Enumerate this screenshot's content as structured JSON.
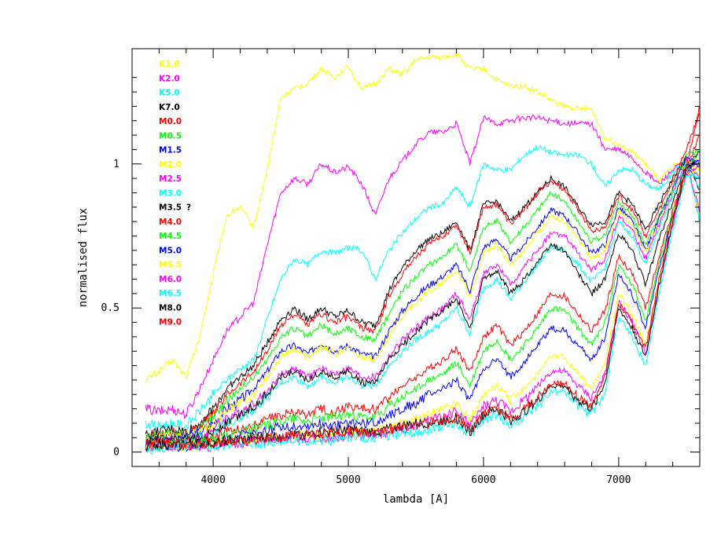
{
  "chart_data": {
    "type": "line",
    "title": "",
    "xlabel": "lambda [A]",
    "ylabel": "normalised flux",
    "xlim": [
      3400,
      7600
    ],
    "ylim": [
      -0.05,
      1.4
    ],
    "x_major_ticks": [
      4000,
      5000,
      6000,
      7000
    ],
    "x_tick_labels": [
      "4000",
      "5000",
      "6000",
      "7000"
    ],
    "y_major_ticks": [
      0,
      0.5,
      1
    ],
    "y_tick_labels": [
      "0",
      "0.5",
      "1"
    ],
    "grid": false,
    "legend_placement": "top-left",
    "annotation": "?",
    "x": [
      3500,
      3600,
      3700,
      3800,
      3900,
      4000,
      4100,
      4200,
      4300,
      4400,
      4500,
      4600,
      4700,
      4800,
      4900,
      5000,
      5100,
      5200,
      5300,
      5400,
      5500,
      5600,
      5700,
      5800,
      5900,
      6000,
      6100,
      6200,
      6300,
      6400,
      6500,
      6600,
      6700,
      6800,
      6900,
      7000,
      7100,
      7200,
      7300,
      7400,
      7500,
      7600
    ],
    "series": [
      {
        "name": "K1.0",
        "color": "#ffff00",
        "values": [
          0.25,
          0.28,
          0.32,
          0.26,
          0.4,
          0.62,
          0.82,
          0.85,
          0.78,
          0.98,
          1.23,
          1.26,
          1.28,
          1.33,
          1.3,
          1.34,
          1.26,
          1.28,
          1.33,
          1.31,
          1.36,
          1.37,
          1.37,
          1.38,
          1.33,
          1.33,
          1.29,
          1.27,
          1.27,
          1.25,
          1.22,
          1.2,
          1.19,
          1.19,
          1.09,
          1.07,
          1.04,
          1.0,
          0.94,
          0.99,
          1.01,
          0.82
        ]
      },
      {
        "name": "K2.0",
        "color": "#ff00ff",
        "values": [
          0.15,
          0.14,
          0.15,
          0.13,
          0.22,
          0.32,
          0.42,
          0.47,
          0.52,
          0.72,
          0.9,
          0.95,
          0.93,
          1.0,
          0.97,
          0.99,
          0.93,
          0.82,
          0.95,
          1.01,
          1.07,
          1.11,
          1.11,
          1.14,
          1.0,
          1.16,
          1.14,
          1.15,
          1.16,
          1.16,
          1.15,
          1.14,
          1.14,
          1.14,
          1.05,
          1.05,
          1.02,
          0.97,
          0.93,
          0.98,
          1.01,
          0.83
        ]
      },
      {
        "name": "K5.0",
        "color": "#00ffff",
        "values": [
          0.1,
          0.09,
          0.1,
          0.09,
          0.14,
          0.2,
          0.25,
          0.29,
          0.32,
          0.46,
          0.6,
          0.67,
          0.65,
          0.7,
          0.69,
          0.71,
          0.7,
          0.6,
          0.7,
          0.76,
          0.81,
          0.85,
          0.86,
          0.92,
          0.85,
          1.0,
          0.98,
          0.98,
          1.03,
          1.06,
          1.04,
          1.03,
          1.03,
          1.0,
          0.92,
          0.98,
          0.98,
          0.93,
          0.91,
          0.97,
          1.01,
          0.8
        ]
      },
      {
        "name": "K7.0",
        "color": "#000000",
        "values": [
          0.06,
          0.07,
          0.08,
          0.07,
          0.1,
          0.15,
          0.22,
          0.26,
          0.3,
          0.38,
          0.46,
          0.5,
          0.46,
          0.5,
          0.47,
          0.49,
          0.45,
          0.44,
          0.56,
          0.64,
          0.7,
          0.74,
          0.76,
          0.8,
          0.7,
          0.86,
          0.87,
          0.8,
          0.85,
          0.9,
          0.95,
          0.92,
          0.85,
          0.79,
          0.8,
          0.9,
          0.86,
          0.77,
          0.86,
          0.95,
          1.02,
          0.9
        ]
      },
      {
        "name": "M0.0",
        "color": "#ff0000",
        "values": [
          0.05,
          0.06,
          0.07,
          0.06,
          0.09,
          0.13,
          0.2,
          0.24,
          0.28,
          0.35,
          0.44,
          0.48,
          0.44,
          0.48,
          0.45,
          0.47,
          0.43,
          0.42,
          0.54,
          0.62,
          0.68,
          0.72,
          0.75,
          0.79,
          0.69,
          0.85,
          0.86,
          0.79,
          0.84,
          0.9,
          0.94,
          0.91,
          0.84,
          0.77,
          0.78,
          0.89,
          0.84,
          0.75,
          0.84,
          0.94,
          1.05,
          1.18
        ]
      },
      {
        "name": "M0.5",
        "color": "#00ff00",
        "values": [
          0.05,
          0.06,
          0.06,
          0.06,
          0.08,
          0.12,
          0.18,
          0.22,
          0.26,
          0.32,
          0.4,
          0.43,
          0.4,
          0.44,
          0.41,
          0.43,
          0.4,
          0.39,
          0.48,
          0.56,
          0.61,
          0.65,
          0.68,
          0.72,
          0.63,
          0.78,
          0.8,
          0.73,
          0.78,
          0.84,
          0.9,
          0.87,
          0.8,
          0.73,
          0.75,
          0.87,
          0.82,
          0.72,
          0.82,
          0.92,
          1.03,
          1.05
        ]
      },
      {
        "name": "M1.5",
        "color": "#0000ff",
        "values": [
          0.04,
          0.05,
          0.05,
          0.05,
          0.07,
          0.1,
          0.15,
          0.18,
          0.22,
          0.28,
          0.35,
          0.37,
          0.34,
          0.38,
          0.35,
          0.37,
          0.34,
          0.33,
          0.42,
          0.49,
          0.54,
          0.58,
          0.61,
          0.65,
          0.56,
          0.71,
          0.74,
          0.67,
          0.72,
          0.78,
          0.84,
          0.82,
          0.76,
          0.69,
          0.72,
          0.85,
          0.8,
          0.7,
          0.81,
          0.91,
          1.02,
          1.0
        ]
      },
      {
        "name": "M2.0",
        "color": "#ffff00",
        "values": [
          0.04,
          0.05,
          0.05,
          0.05,
          0.07,
          0.09,
          0.14,
          0.17,
          0.2,
          0.26,
          0.33,
          0.36,
          0.33,
          0.37,
          0.34,
          0.36,
          0.33,
          0.32,
          0.4,
          0.47,
          0.52,
          0.56,
          0.59,
          0.63,
          0.54,
          0.69,
          0.72,
          0.65,
          0.7,
          0.76,
          0.82,
          0.8,
          0.74,
          0.67,
          0.7,
          0.84,
          0.79,
          0.69,
          0.8,
          0.9,
          1.01,
          0.98
        ]
      },
      {
        "name": "M2.5",
        "color": "#ff00ff",
        "values": [
          0.03,
          0.04,
          0.04,
          0.04,
          0.06,
          0.08,
          0.12,
          0.14,
          0.17,
          0.21,
          0.27,
          0.29,
          0.26,
          0.29,
          0.27,
          0.29,
          0.26,
          0.26,
          0.33,
          0.39,
          0.43,
          0.47,
          0.5,
          0.55,
          0.46,
          0.62,
          0.65,
          0.58,
          0.64,
          0.7,
          0.76,
          0.75,
          0.69,
          0.63,
          0.67,
          0.82,
          0.77,
          0.67,
          0.79,
          0.9,
          1.01,
          0.95
        ]
      },
      {
        "name": "M3.0",
        "color": "#00ffff",
        "values": [
          0.03,
          0.04,
          0.04,
          0.04,
          0.05,
          0.07,
          0.1,
          0.12,
          0.15,
          0.19,
          0.24,
          0.26,
          0.23,
          0.26,
          0.24,
          0.26,
          0.23,
          0.23,
          0.3,
          0.35,
          0.39,
          0.42,
          0.45,
          0.5,
          0.41,
          0.57,
          0.6,
          0.53,
          0.59,
          0.65,
          0.71,
          0.7,
          0.65,
          0.59,
          0.64,
          0.8,
          0.75,
          0.65,
          0.78,
          0.89,
          1.0,
          0.92
        ]
      },
      {
        "name": "M3.5",
        "color": "#000000",
        "values": [
          0.03,
          0.04,
          0.04,
          0.04,
          0.05,
          0.07,
          0.1,
          0.13,
          0.16,
          0.2,
          0.26,
          0.28,
          0.25,
          0.28,
          0.26,
          0.28,
          0.24,
          0.24,
          0.32,
          0.37,
          0.42,
          0.46,
          0.49,
          0.53,
          0.43,
          0.6,
          0.63,
          0.55,
          0.6,
          0.66,
          0.72,
          0.7,
          0.62,
          0.55,
          0.6,
          0.76,
          0.7,
          0.58,
          0.74,
          0.87,
          0.99,
          1.0
        ]
      },
      {
        "name": "M4.0",
        "color": "#ff0000",
        "values": [
          0.02,
          0.03,
          0.03,
          0.03,
          0.04,
          0.05,
          0.07,
          0.08,
          0.09,
          0.11,
          0.13,
          0.14,
          0.13,
          0.15,
          0.14,
          0.16,
          0.15,
          0.15,
          0.19,
          0.23,
          0.26,
          0.29,
          0.32,
          0.36,
          0.28,
          0.4,
          0.44,
          0.37,
          0.42,
          0.48,
          0.55,
          0.54,
          0.48,
          0.42,
          0.49,
          0.68,
          0.62,
          0.5,
          0.68,
          0.84,
          0.98,
          1.1
        ]
      },
      {
        "name": "M4.5",
        "color": "#00ff00",
        "values": [
          0.02,
          0.02,
          0.03,
          0.03,
          0.03,
          0.04,
          0.06,
          0.07,
          0.08,
          0.09,
          0.11,
          0.12,
          0.11,
          0.12,
          0.12,
          0.13,
          0.12,
          0.12,
          0.16,
          0.19,
          0.22,
          0.25,
          0.27,
          0.31,
          0.23,
          0.35,
          0.39,
          0.32,
          0.37,
          0.43,
          0.5,
          0.49,
          0.43,
          0.37,
          0.45,
          0.65,
          0.58,
          0.46,
          0.66,
          0.83,
          0.98,
          1.05
        ]
      },
      {
        "name": "M5.0",
        "color": "#0000ff",
        "values": [
          0.02,
          0.02,
          0.02,
          0.02,
          0.03,
          0.03,
          0.05,
          0.06,
          0.06,
          0.07,
          0.09,
          0.09,
          0.09,
          0.1,
          0.09,
          0.1,
          0.1,
          0.1,
          0.13,
          0.15,
          0.17,
          0.2,
          0.22,
          0.25,
          0.18,
          0.29,
          0.32,
          0.26,
          0.31,
          0.37,
          0.43,
          0.42,
          0.37,
          0.32,
          0.4,
          0.62,
          0.55,
          0.43,
          0.64,
          0.82,
          0.97,
          1.02
        ]
      },
      {
        "name": "M5.5",
        "color": "#ffff00",
        "values": [
          0.01,
          0.02,
          0.02,
          0.02,
          0.02,
          0.03,
          0.03,
          0.04,
          0.04,
          0.05,
          0.05,
          0.06,
          0.06,
          0.06,
          0.06,
          0.07,
          0.07,
          0.07,
          0.08,
          0.1,
          0.11,
          0.13,
          0.15,
          0.17,
          0.11,
          0.2,
          0.23,
          0.18,
          0.22,
          0.27,
          0.33,
          0.33,
          0.27,
          0.22,
          0.31,
          0.55,
          0.48,
          0.37,
          0.6,
          0.8,
          0.97,
          0.98
        ]
      },
      {
        "name": "M6.0",
        "color": "#ff00ff",
        "values": [
          0.01,
          0.02,
          0.02,
          0.02,
          0.02,
          0.02,
          0.03,
          0.03,
          0.04,
          0.04,
          0.05,
          0.05,
          0.05,
          0.05,
          0.05,
          0.06,
          0.06,
          0.06,
          0.07,
          0.08,
          0.09,
          0.11,
          0.12,
          0.14,
          0.09,
          0.16,
          0.18,
          0.14,
          0.18,
          0.23,
          0.28,
          0.28,
          0.23,
          0.19,
          0.27,
          0.52,
          0.45,
          0.34,
          0.58,
          0.79,
          0.96,
          1.0
        ]
      },
      {
        "name": "M6.5",
        "color": "#00ffff",
        "values": [
          0.01,
          0.01,
          0.02,
          0.02,
          0.02,
          0.02,
          0.02,
          0.03,
          0.03,
          0.03,
          0.04,
          0.04,
          0.04,
          0.04,
          0.04,
          0.05,
          0.05,
          0.05,
          0.06,
          0.06,
          0.07,
          0.08,
          0.09,
          0.1,
          0.06,
          0.11,
          0.13,
          0.09,
          0.12,
          0.16,
          0.21,
          0.21,
          0.16,
          0.13,
          0.21,
          0.47,
          0.4,
          0.3,
          0.55,
          0.77,
          0.96,
          0.95
        ]
      },
      {
        "name": "M8.0",
        "color": "#000000",
        "values": [
          0.02,
          0.03,
          0.02,
          0.03,
          0.03,
          0.03,
          0.04,
          0.04,
          0.05,
          0.05,
          0.06,
          0.06,
          0.06,
          0.07,
          0.07,
          0.08,
          0.07,
          0.07,
          0.08,
          0.09,
          0.1,
          0.1,
          0.11,
          0.12,
          0.07,
          0.13,
          0.15,
          0.11,
          0.14,
          0.18,
          0.23,
          0.23,
          0.18,
          0.15,
          0.24,
          0.5,
          0.43,
          0.33,
          0.58,
          0.8,
          0.98,
          1.05
        ]
      },
      {
        "name": "M9.0",
        "color": "#ff0000",
        "values": [
          0.03,
          0.04,
          0.03,
          0.02,
          0.03,
          0.03,
          0.04,
          0.04,
          0.04,
          0.05,
          0.05,
          0.06,
          0.06,
          0.06,
          0.07,
          0.07,
          0.07,
          0.07,
          0.08,
          0.09,
          0.09,
          0.1,
          0.11,
          0.12,
          0.08,
          0.13,
          0.15,
          0.12,
          0.15,
          0.19,
          0.24,
          0.24,
          0.19,
          0.16,
          0.26,
          0.52,
          0.45,
          0.36,
          0.6,
          0.82,
          0.99,
          1.2
        ]
      }
    ]
  }
}
